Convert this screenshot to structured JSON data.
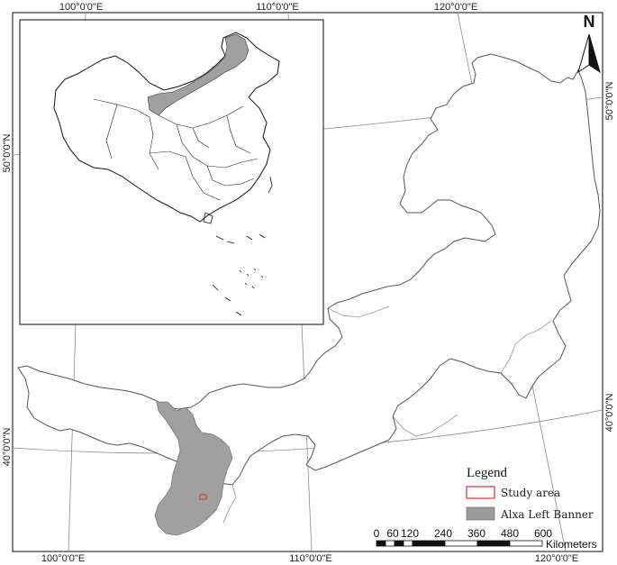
{
  "graticule": {
    "top_labels": [
      "100°0'0\"E",
      "110°0'0\"E",
      "120°0'0\"E"
    ],
    "bottom_labels": [
      "100°0'0\"E",
      "110°0'0\"E",
      "120°0'0\"E"
    ],
    "left_labels": [
      "50°0'0\"N",
      "40°0'0\"N"
    ],
    "right_labels": [
      "50°0'0\"N",
      "40°0'0\"N"
    ]
  },
  "north_arrow": {
    "label": "N"
  },
  "legend": {
    "title": "Legend",
    "items": [
      {
        "label": "Study area",
        "symbol": "outline",
        "color": "#d9303a"
      },
      {
        "label": "Alxa Left Banner",
        "symbol": "fill",
        "color": "#9b9b9b"
      }
    ]
  },
  "scale_bar": {
    "ticks": [
      "0",
      "60",
      "120",
      "240",
      "360",
      "480",
      "600"
    ],
    "unit": "Kilometers"
  },
  "colors": {
    "region_fill": "#a0a0a0",
    "boundary": "#555555",
    "study_area": "#d9303a",
    "frame": "#333333"
  }
}
